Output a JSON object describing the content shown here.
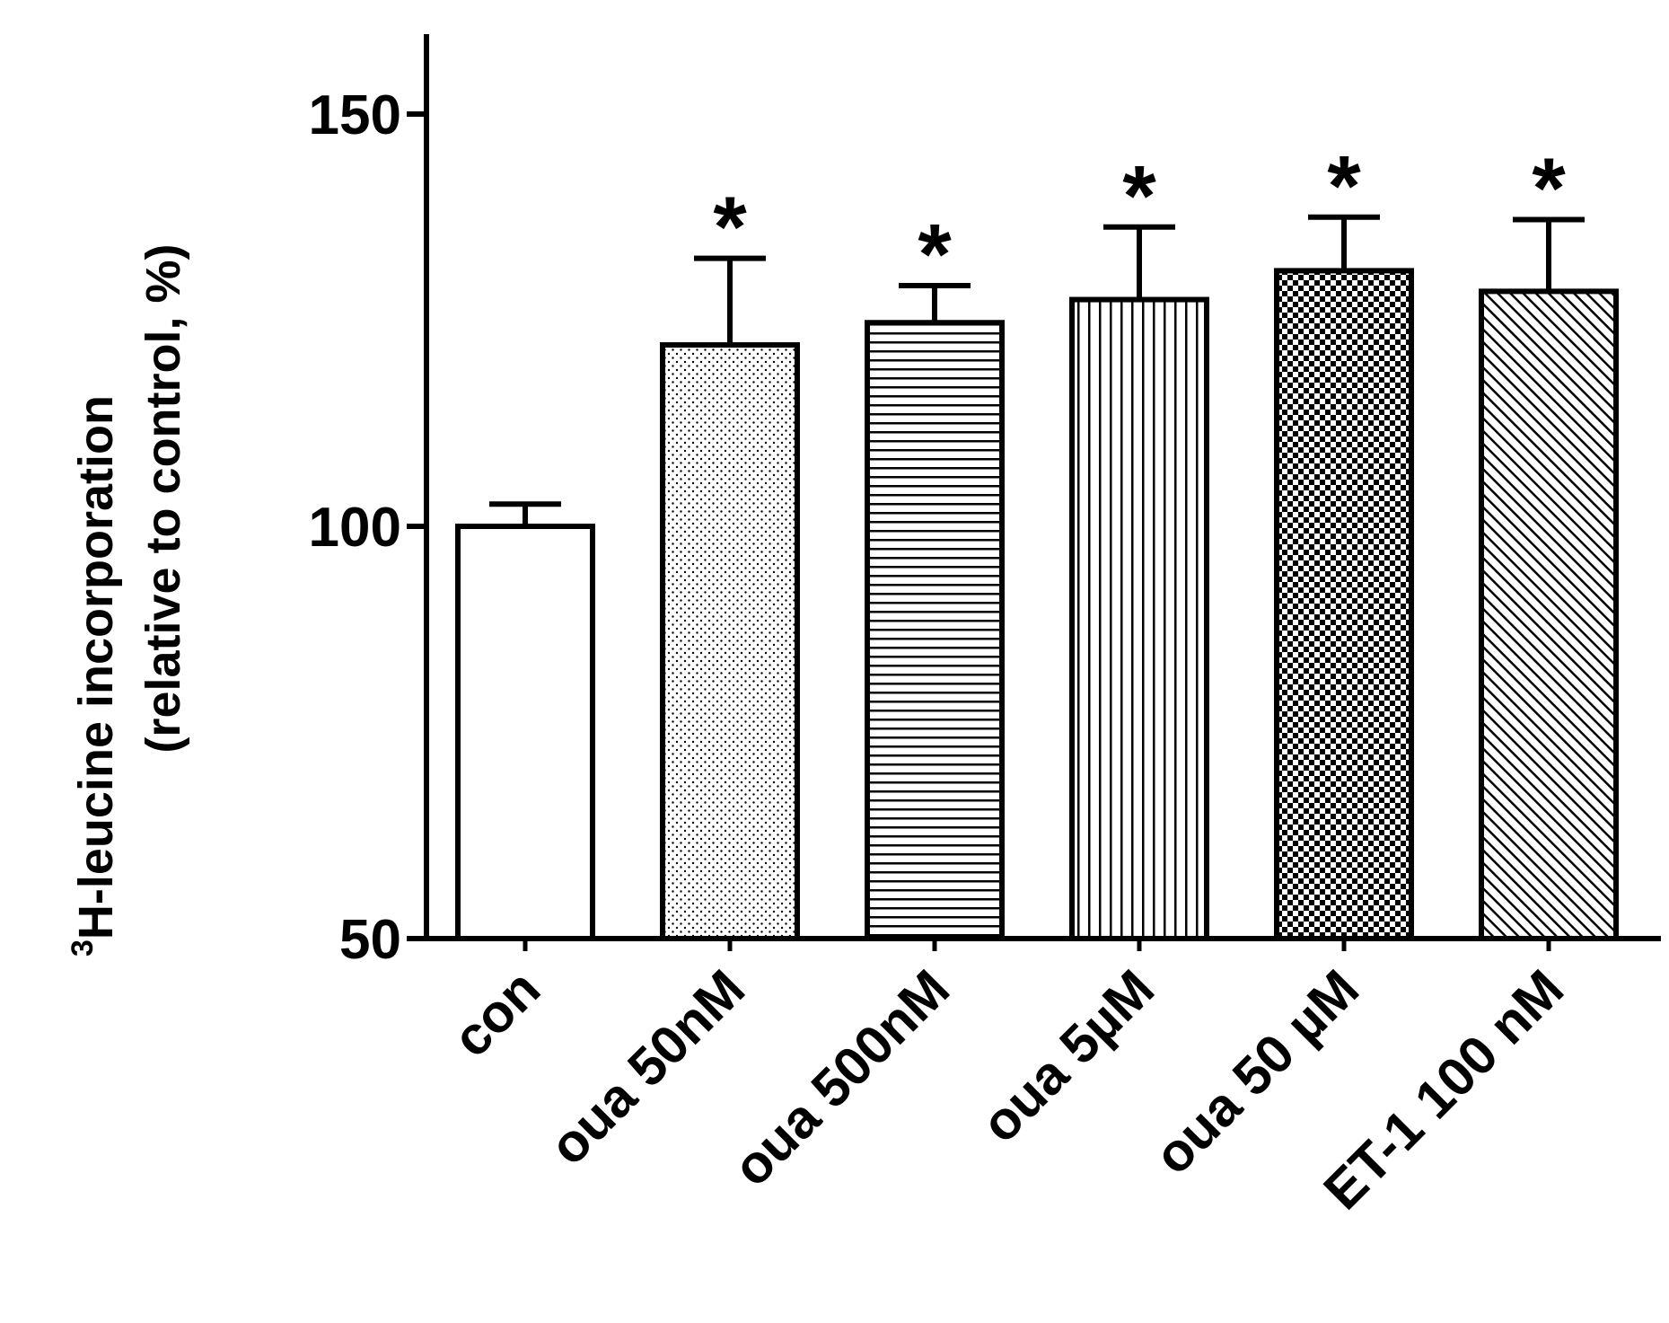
{
  "chart_data": {
    "type": "bar",
    "title": "",
    "xlabel": "",
    "ylabel_line1_sup": "3",
    "ylabel_line1": "H-leucine incorporation",
    "ylabel_line2": "(relative to control, %)",
    "ylim": [
      50,
      160
    ],
    "yticks": [
      50,
      100,
      150
    ],
    "yscale": "linear",
    "grid": false,
    "legend": "none",
    "categories": [
      "con",
      "oua 50nM",
      "oua 500nM",
      "oua 5µM",
      "oua 50 µM",
      "ET-1 100 nM"
    ],
    "values": [
      100,
      122,
      124.7,
      127.5,
      131,
      128.5
    ],
    "error_upper": [
      2.7,
      10.5,
      4.5,
      8.8,
      6.5,
      8.7
    ],
    "significance": [
      "",
      "*",
      "*",
      "*",
      "*",
      "*"
    ],
    "patterns": [
      "none",
      "dots",
      "horizontal-lines",
      "vertical-lines",
      "checker",
      "diagonal-lines"
    ],
    "colors": {
      "stroke": "#000000",
      "fill": "#ffffff"
    }
  }
}
